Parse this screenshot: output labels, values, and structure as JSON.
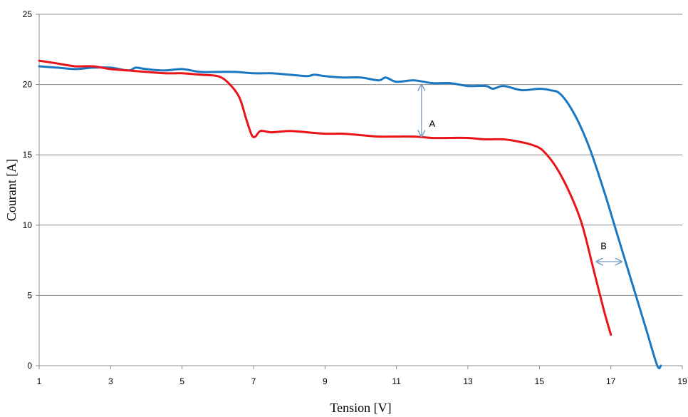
{
  "chart_data": {
    "type": "line",
    "xlabel": "Tension [V]",
    "ylabel": "Courant [A]",
    "xlim": [
      1,
      19
    ],
    "ylim": [
      0,
      25
    ],
    "x_ticks": [
      1,
      3,
      5,
      7,
      9,
      11,
      13,
      15,
      17,
      19
    ],
    "y_ticks": [
      0,
      5,
      10,
      15,
      20,
      25
    ],
    "grid": "horizontal",
    "series": [
      {
        "color": "#1a78c2",
        "x": [
          1,
          1.5,
          2,
          2.5,
          3,
          3.5,
          3.7,
          4,
          4.5,
          5,
          5.5,
          6,
          6.5,
          7,
          7.5,
          8,
          8.5,
          8.7,
          9,
          9.5,
          10,
          10.5,
          10.7,
          11,
          11.5,
          12,
          12.5,
          13,
          13.5,
          13.7,
          14,
          14.5,
          15,
          15.3,
          15.6,
          16,
          16.4,
          16.8,
          17.1,
          17.4,
          17.7,
          18,
          18.3,
          18.4
        ],
        "y": [
          21.3,
          21.2,
          21.1,
          21.2,
          21.2,
          21.0,
          21.2,
          21.1,
          21.0,
          21.1,
          20.9,
          20.9,
          20.9,
          20.8,
          20.8,
          20.7,
          20.6,
          20.7,
          20.6,
          20.5,
          20.5,
          20.3,
          20.5,
          20.2,
          20.3,
          20.1,
          20.1,
          19.9,
          19.9,
          19.7,
          19.9,
          19.6,
          19.7,
          19.6,
          19.3,
          17.8,
          15.5,
          12.5,
          10.0,
          7.5,
          5.0,
          2.5,
          0.0,
          0.0
        ]
      },
      {
        "color": "#e8141a",
        "x": [
          1,
          1.5,
          2,
          2.5,
          3,
          3.5,
          4,
          4.5,
          5,
          5.5,
          6,
          6.3,
          6.6,
          6.8,
          6.95,
          7.05,
          7.2,
          7.5,
          8,
          8.5,
          9,
          9.5,
          10,
          10.5,
          11,
          11.5,
          12,
          12.5,
          13,
          13.5,
          14,
          14.5,
          14.8,
          15.1,
          15.5,
          15.9,
          16.2,
          16.5,
          16.8,
          17
        ],
        "y": [
          21.7,
          21.5,
          21.3,
          21.3,
          21.1,
          21.0,
          20.9,
          20.8,
          20.8,
          20.7,
          20.6,
          20.1,
          19.1,
          17.5,
          16.4,
          16.3,
          16.7,
          16.6,
          16.7,
          16.6,
          16.5,
          16.5,
          16.4,
          16.3,
          16.3,
          16.3,
          16.2,
          16.2,
          16.2,
          16.1,
          16.1,
          15.9,
          15.7,
          15.3,
          14.0,
          12.0,
          10.0,
          7.0,
          4.0,
          2.2
        ]
      }
    ],
    "annotations": [
      {
        "text": "A",
        "x": 12.0,
        "y": 17.0,
        "arrow": "vertical",
        "from": [
          11.7,
          20.0
        ],
        "to": [
          11.7,
          16.3
        ]
      },
      {
        "text": "B",
        "x": 16.8,
        "y": 8.3,
        "arrow": "horizontal",
        "from": [
          16.6,
          7.4
        ],
        "to": [
          17.3,
          7.4
        ]
      }
    ]
  }
}
